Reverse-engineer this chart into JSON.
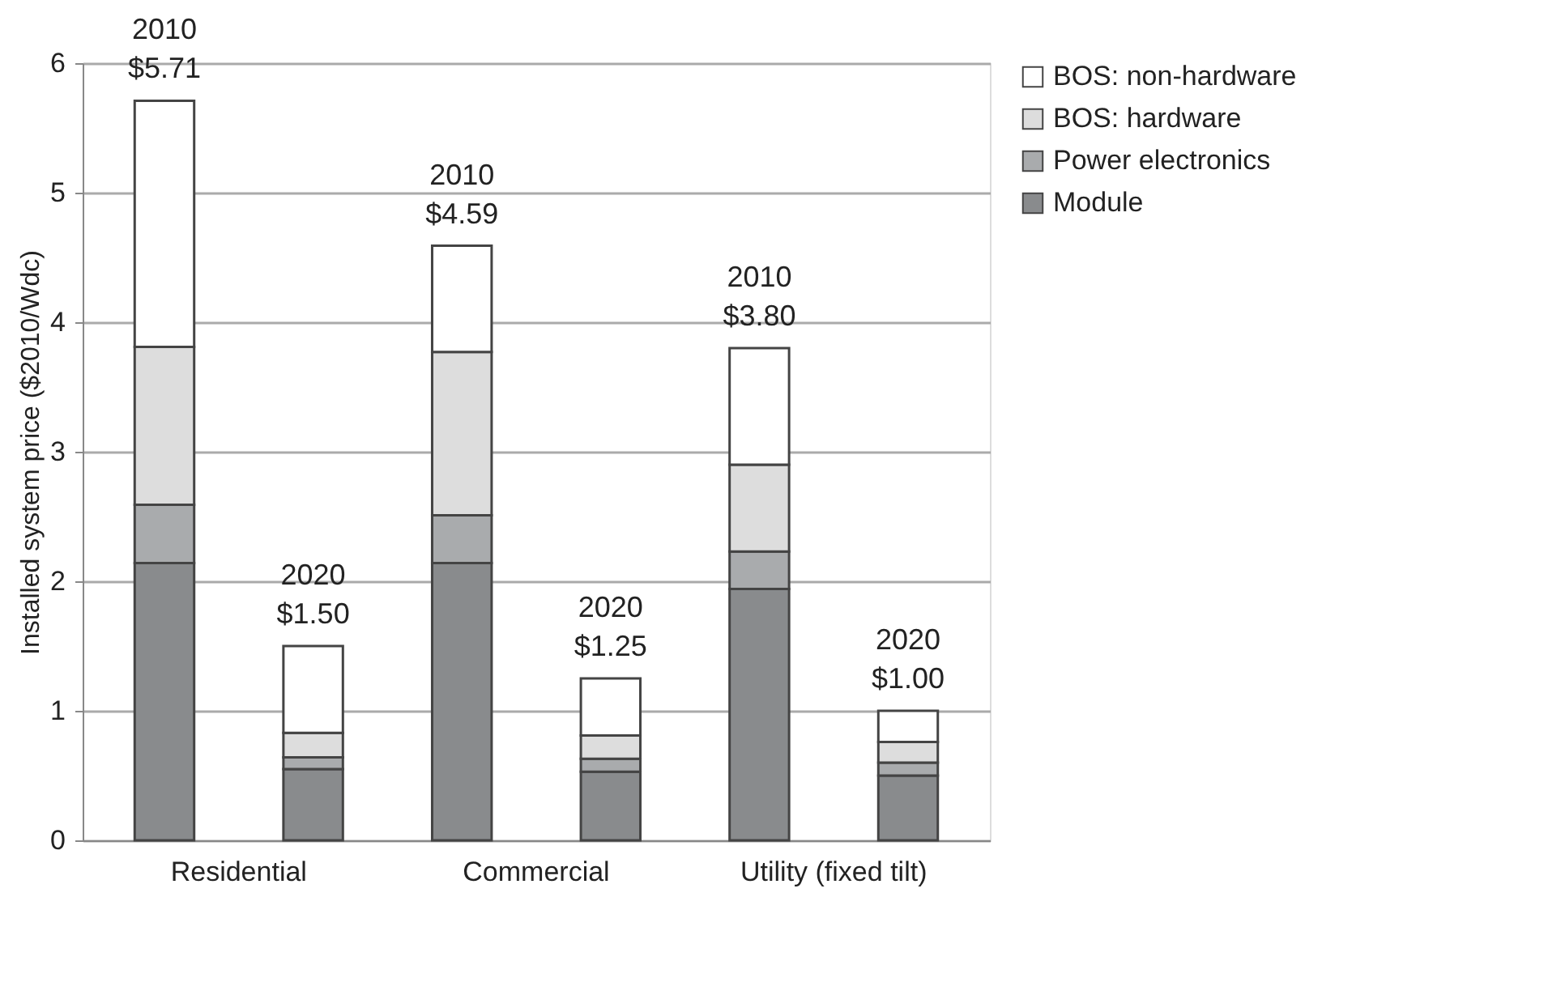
{
  "chart_data": {
    "type": "bar",
    "stacked": true,
    "ylabel": "Installed system price ($2010/Wdc)",
    "categories": [
      null,
      null,
      null,
      null,
      null,
      null
    ],
    "annotations": [
      "Residential",
      "Commercial",
      "Utility (fixed tilt)"
    ],
    "series": [
      {
        "name": "Module",
        "color": "#898b8d",
        "values": [
          2.14,
          0.55,
          2.14,
          0.53,
          1.94,
          0.5
        ]
      },
      {
        "name": "Power electronics",
        "color": "#a9abad",
        "values": [
          0.45,
          0.09,
          0.37,
          0.1,
          0.29,
          0.1
        ]
      },
      {
        "name": "BOS: hardware",
        "color": "#dddddd",
        "values": [
          1.22,
          0.19,
          1.26,
          0.18,
          0.67,
          0.16
        ]
      },
      {
        "name": "BOS: non-hardware",
        "color": "#ffffff",
        "values": [
          1.9,
          0.67,
          0.82,
          0.44,
          0.9,
          0.24
        ]
      }
    ],
    "totals": [
      "2010\n$5.71",
      "2020\n$1.50",
      "2010\n$4.59",
      "2020\n$1.25",
      "2010\n$3.80",
      "2020\n$1.00"
    ],
    "ylim": [
      0,
      6
    ],
    "yticks": [
      0,
      1,
      2,
      3,
      4,
      5,
      6
    ],
    "grid": "y",
    "legend": "right"
  }
}
